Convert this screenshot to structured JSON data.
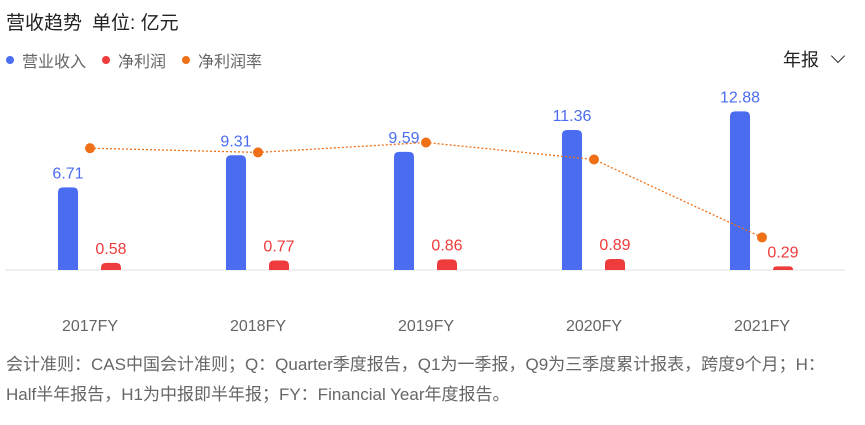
{
  "header": {
    "title": "营收趋势",
    "unit": "单位: 亿元",
    "period_select": "年报"
  },
  "legend": [
    {
      "label": "营业收入",
      "color": "#4A6CF0"
    },
    {
      "label": "净利润",
      "color": "#EE3B3B"
    },
    {
      "label": "净利润率",
      "color": "#F07018"
    }
  ],
  "chart_data": {
    "type": "bar",
    "categories": [
      "2017FY",
      "2018FY",
      "2019FY",
      "2020FY",
      "2021FY"
    ],
    "series": [
      {
        "name": "营业收入",
        "type": "bar",
        "color": "#4A6CF0",
        "values": [
          6.71,
          9.31,
          9.59,
          11.36,
          12.88
        ],
        "labels": [
          "6.71",
          "9.31",
          "9.59",
          "11.36",
          "12.88"
        ]
      },
      {
        "name": "净利润",
        "type": "bar",
        "color": "#EE3B3B",
        "values": [
          0.58,
          0.77,
          0.86,
          0.89,
          0.29
        ],
        "labels": [
          "0.58",
          "0.77",
          "0.86",
          "0.89",
          "0.29"
        ]
      },
      {
        "name": "净利润率",
        "type": "line",
        "color": "#F07018",
        "values": [
          8.6,
          8.3,
          9.0,
          7.8,
          2.3
        ]
      }
    ],
    "ylim": [
      0,
      13.8
    ],
    "y2lim": [
      0,
      12
    ],
    "legend_position": "top-left"
  },
  "footnote": "会计准则：CAS中国会计准则；Q：Quarter季度报告，Q1为一季报，Q9为三季度累计报表，跨度9个月；H：Half半年报告，H1为中报即半年报；FY：Financial Year年度报告。"
}
